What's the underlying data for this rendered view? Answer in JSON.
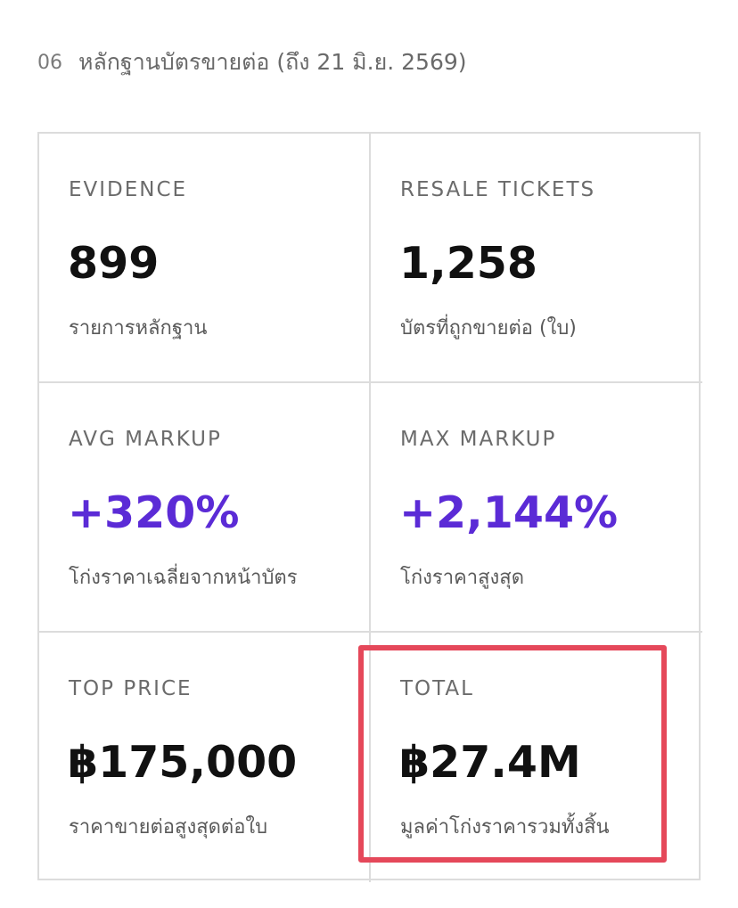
{
  "header": {
    "number": "06",
    "title": "หลักฐานบัตรขายต่อ (ถึง 21 มิ.ย. 2569)"
  },
  "accent_color": "#5b2bd6",
  "highlight_color": "#e5485a",
  "stats": [
    {
      "label": "EVIDENCE",
      "value": "899",
      "caption": "รายการหลักฐาน"
    },
    {
      "label": "RESALE TICKETS",
      "value": "1,258",
      "caption": "บัตรที่ถูกขายต่อ (ใบ)"
    },
    {
      "label": "AVG MARKUP",
      "value": "+320%",
      "caption": "โก่งราคาเฉลี่ยจากหน้าบัตร"
    },
    {
      "label": "MAX MARKUP",
      "value": "+2,144%",
      "caption": "โก่งราคาสูงสุด"
    },
    {
      "label": "TOP PRICE",
      "value": "฿175,000",
      "caption": "ราคาขายต่อสูงสุดต่อใบ"
    },
    {
      "label": "TOTAL",
      "value": "฿27.4M",
      "caption": "มูลค่าโก่งราคารวมทั้งสิ้น"
    }
  ]
}
